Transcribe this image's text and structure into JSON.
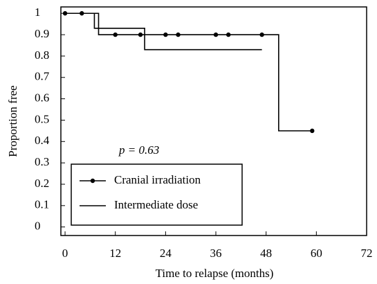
{
  "chart_data": {
    "type": "step",
    "xlabel": "Time  to relapse (months)",
    "ylabel": "Proportion free",
    "annotation": "p = 0.63",
    "xlim": [
      -1,
      72
    ],
    "xticks": [
      0,
      12,
      24,
      36,
      48,
      60,
      72
    ],
    "ylim": [
      -0.04,
      1.03
    ],
    "yticks": [
      0,
      0.1,
      0.2,
      0.3,
      0.4,
      0.5,
      0.6,
      0.7,
      0.8,
      0.9,
      1
    ],
    "legend": "lower left",
    "series": [
      {
        "name": "Cranial irradiation",
        "color": "#000000",
        "x": [
          0,
          8,
          51,
          59
        ],
        "values": [
          1,
          0.9,
          0.45,
          0.45
        ],
        "censor_x": [
          0,
          4,
          12,
          18,
          24,
          27,
          36,
          39,
          47,
          59
        ],
        "censor_values": [
          1,
          1,
          0.9,
          0.9,
          0.9,
          0.9,
          0.9,
          0.9,
          0.9,
          0.45
        ]
      },
      {
        "name": "Intermediate dose",
        "color": "#000000",
        "x": [
          0,
          7,
          19,
          47
        ],
        "values": [
          1,
          0.93,
          0.83,
          0.83
        ]
      }
    ]
  }
}
